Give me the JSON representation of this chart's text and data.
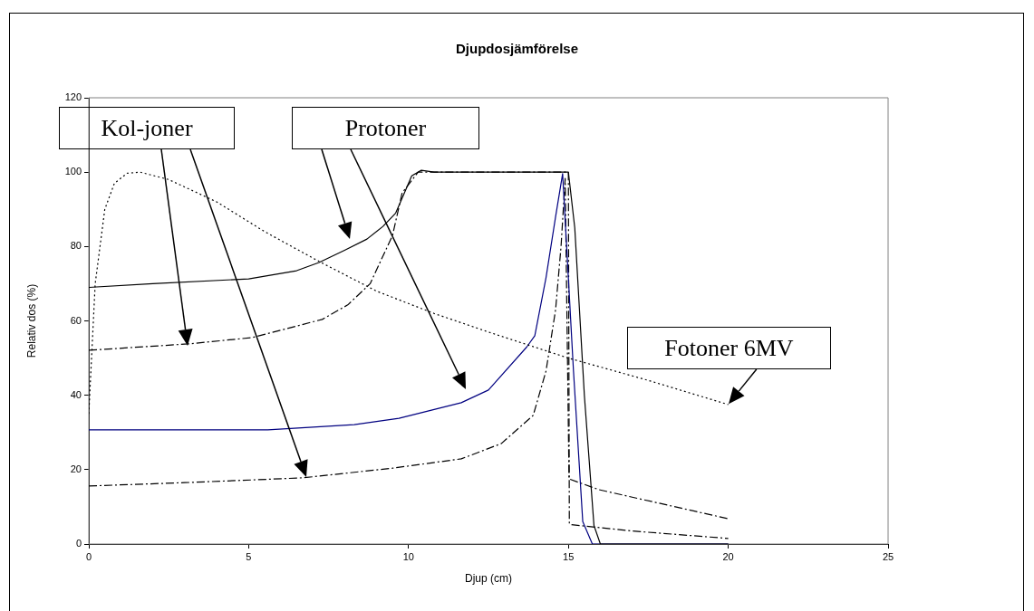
{
  "chart_data": {
    "type": "line",
    "title": "Djupdosjämförelse",
    "xlabel": "Djup (cm)",
    "ylabel": "Relativ dos (%)",
    "xlim": [
      0,
      25
    ],
    "xticks": [
      0,
      5,
      10,
      15,
      20,
      25
    ],
    "ylim": [
      0,
      120
    ],
    "yticks": [
      0,
      20,
      40,
      60,
      80,
      100,
      120
    ],
    "grid": false,
    "legend": false,
    "marker": "none",
    "annotations": [
      "Kol-joner",
      "Protoner",
      {
        "text": "Fotoner 6MV",
        "x": 20,
        "y": 37.5
      }
    ],
    "series": [
      {
        "color": "#000000",
        "line_style": "dotted",
        "x": [
          0,
          0.2,
          0.5,
          0.8,
          1.2,
          1.6,
          2.5,
          4,
          5.5,
          7.2,
          9,
          10.8,
          12.5,
          15,
          17.5,
          20
        ],
        "values": [
          35,
          70,
          90,
          97,
          99.7,
          100,
          98,
          92,
          84,
          76,
          68,
          62,
          57,
          50,
          44,
          37.5
        ]
      },
      {
        "color": "#000000",
        "line_style": "solid",
        "x": [
          0,
          2,
          5,
          6.5,
          7.2,
          8,
          8.7,
          9.2,
          9.6,
          9.9,
          10.1,
          10.4,
          10.8,
          12,
          15,
          15.2,
          15.5,
          15.8,
          16,
          20
        ],
        "values": [
          69,
          70,
          71.3,
          73.5,
          75.7,
          79,
          82,
          85.4,
          89,
          95,
          99,
          100.5,
          100,
          100,
          100,
          85,
          40,
          5,
          0,
          0
        ]
      },
      {
        "color": "#000080",
        "line_style": "solid",
        "x": [
          0,
          5.6,
          8.3,
          9.7,
          11.65,
          12.5,
          13.7,
          13.95,
          14.3,
          14.6,
          14.82,
          15.16,
          15.45,
          15.75,
          20
        ],
        "values": [
          30.7,
          30.7,
          32.1,
          33.8,
          38,
          41.4,
          53,
          56,
          71.6,
          88,
          99.6,
          46.5,
          6,
          0,
          0
        ]
      },
      {
        "color": "#000000",
        "line_style": "dashed",
        "x": [
          0,
          3.1,
          5.1,
          7.3,
          8.1,
          8.8,
          9.5,
          9.8,
          10.3,
          12,
          15,
          15.03,
          15.1,
          17,
          20
        ],
        "values": [
          52.1,
          53.8,
          55.5,
          60.4,
          64.3,
          70,
          83,
          94.4,
          100,
          100,
          100,
          5.4,
          5.2,
          3.5,
          1.5
        ]
      },
      {
        "color": "#000000",
        "line_style": "dashed",
        "x": [
          0,
          3,
          6.7,
          9.5,
          11.65,
          12.9,
          13.9,
          14.3,
          14.6,
          14.77,
          14.9,
          15.02,
          15.96,
          20
        ],
        "values": [
          15.6,
          16.5,
          17.8,
          20.4,
          22.9,
          27,
          34.6,
          46.5,
          63,
          80,
          98.3,
          17.5,
          14.6,
          6.8
        ]
      }
    ]
  }
}
